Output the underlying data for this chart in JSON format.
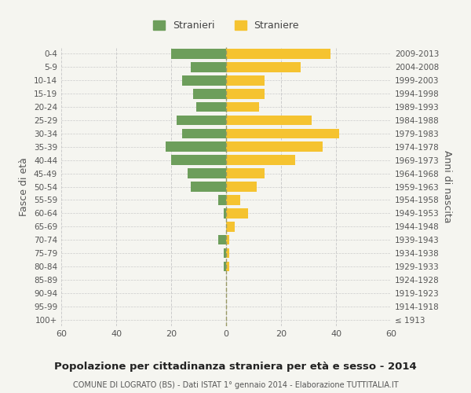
{
  "age_groups": [
    "100+",
    "95-99",
    "90-94",
    "85-89",
    "80-84",
    "75-79",
    "70-74",
    "65-69",
    "60-64",
    "55-59",
    "50-54",
    "45-49",
    "40-44",
    "35-39",
    "30-34",
    "25-29",
    "20-24",
    "15-19",
    "10-14",
    "5-9",
    "0-4"
  ],
  "birth_years": [
    "≤ 1913",
    "1914-1918",
    "1919-1923",
    "1924-1928",
    "1929-1933",
    "1934-1938",
    "1939-1943",
    "1944-1948",
    "1949-1953",
    "1954-1958",
    "1959-1963",
    "1964-1968",
    "1969-1973",
    "1974-1978",
    "1979-1983",
    "1984-1988",
    "1989-1993",
    "1994-1998",
    "1999-2003",
    "2004-2008",
    "2009-2013"
  ],
  "males": [
    0,
    0,
    0,
    0,
    1,
    1,
    3,
    0,
    1,
    3,
    13,
    14,
    20,
    22,
    16,
    18,
    11,
    12,
    16,
    13,
    20
  ],
  "females": [
    0,
    0,
    0,
    0,
    1,
    1,
    1,
    3,
    8,
    5,
    11,
    14,
    25,
    35,
    41,
    31,
    12,
    14,
    14,
    27,
    38
  ],
  "male_color": "#6d9e5b",
  "female_color": "#f5c330",
  "title": "Popolazione per cittadinanza straniera per età e sesso - 2014",
  "subtitle": "COMUNE DI LOGRATO (BS) - Dati ISTAT 1° gennaio 2014 - Elaborazione TUTTITALIA.IT",
  "ylabel_left": "Fasce di età",
  "ylabel_right": "Anni di nascita",
  "xlim": 60,
  "legend_males": "Stranieri",
  "legend_females": "Straniere",
  "background_color": "#f5f5f0",
  "grid_color": "#cccccc"
}
